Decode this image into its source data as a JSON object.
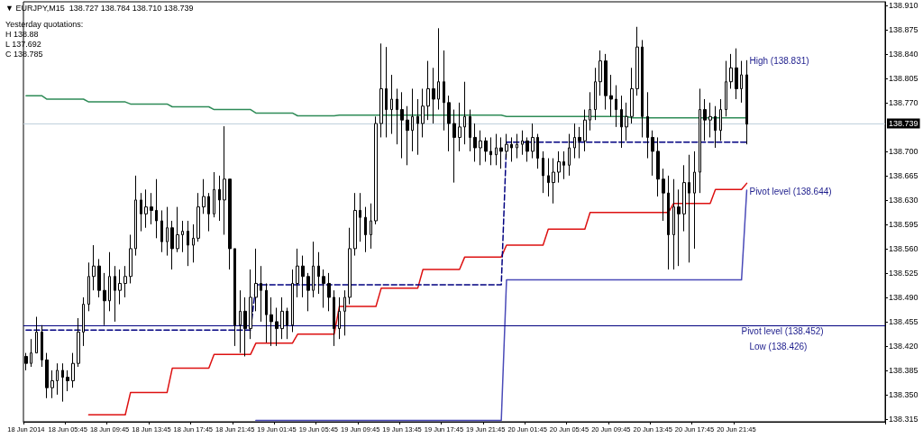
{
  "chart_data": {
    "type": "candlestick",
    "title": "▼ EURJPY,M15  138.727 138.784 138.710 138.739",
    "color": "#000000",
    "marker": "none",
    "annotations": [
      "Yesterday quotations:",
      "H 138.88",
      "L 137.692",
      "C 138.785",
      {
        "text": "Pivot level (138.452)",
        "y": 138.452
      },
      "High (138.831)",
      "Pivot level (138.644)",
      "Low (138.426)"
    ],
    "ylim": [
      138.311,
      138.915
    ],
    "yticks": [
      {
        "value": 138.315,
        "label": "138.315"
      },
      {
        "value": 138.35,
        "label": "138.350"
      },
      {
        "value": 138.385,
        "label": "138.385"
      },
      {
        "value": 138.42,
        "label": "138.420"
      },
      {
        "value": 138.455,
        "label": "138.455"
      },
      {
        "value": 138.49,
        "label": "138.490"
      },
      {
        "value": 138.525,
        "label": "138.525"
      },
      {
        "value": 138.56,
        "label": "138.560"
      },
      {
        "value": 138.595,
        "label": "138.595"
      },
      {
        "value": 138.63,
        "label": "138.630"
      },
      {
        "value": 138.665,
        "label": "138.665"
      },
      {
        "value": 138.7,
        "label": "138.700"
      },
      {
        "value": 138.77,
        "label": "138.770"
      },
      {
        "value": 138.805,
        "label": "138.805"
      },
      {
        "value": 138.84,
        "label": "138.840"
      },
      {
        "value": 138.875,
        "label": "138.875"
      },
      {
        "value": 138.91,
        "label": "138.910"
      }
    ],
    "ref_lines": [
      {
        "axis": "y",
        "value": 138.739,
        "label": "138.739",
        "color": "#c0d0dc"
      },
      {
        "axis": "y",
        "value": 138.452,
        "color": "#000080"
      }
    ],
    "categories": [
      "18 Jun 2014",
      null,
      null,
      null,
      null,
      null,
      null,
      null,
      "18 Jun 05:45",
      null,
      null,
      null,
      null,
      null,
      null,
      null,
      "18 Jun 09:45",
      null,
      null,
      null,
      null,
      null,
      null,
      null,
      "18 Jun 13:45",
      null,
      null,
      null,
      null,
      null,
      null,
      null,
      "18 Jun 17:45",
      null,
      null,
      null,
      null,
      null,
      null,
      null,
      "18 Jun 21:45",
      null,
      null,
      null,
      null,
      null,
      null,
      null,
      "19 Jun 01:45",
      null,
      null,
      null,
      null,
      null,
      null,
      null,
      "19 Jun 05:45",
      null,
      null,
      null,
      null,
      null,
      null,
      null,
      "19 Jun 09:45",
      null,
      null,
      null,
      null,
      null,
      null,
      null,
      "19 Jun 13:45",
      null,
      null,
      null,
      null,
      null,
      null,
      null,
      "19 Jun 17:45",
      null,
      null,
      null,
      null,
      null,
      null,
      null,
      "19 Jun 21:45",
      null,
      null,
      null,
      null,
      null,
      null,
      null,
      "20 Jun 01:45",
      null,
      null,
      null,
      null,
      null,
      null,
      null,
      "20 Jun 05:45",
      null,
      null,
      null,
      null,
      null,
      null,
      null,
      "20 Jun 09:45",
      null,
      null,
      null,
      null,
      null,
      null,
      null,
      "20 Jun 13:45",
      null,
      null,
      null,
      null,
      null,
      null,
      null,
      "20 Jun 17:45",
      null,
      null,
      null,
      null,
      null,
      null,
      null,
      "20 Jun 21:45",
      null,
      null,
      null,
      null,
      null,
      null,
      null,
      null,
      null,
      null,
      null,
      null,
      null,
      null,
      null,
      null,
      null,
      null,
      null,
      null,
      null,
      null,
      null,
      null,
      null,
      null,
      null,
      null
    ],
    "ohlc": [
      [
        138.405,
        138.41,
        138.385,
        138.395
      ],
      [
        138.395,
        138.43,
        138.39,
        138.41
      ],
      [
        138.41,
        138.462,
        138.41,
        138.44
      ],
      [
        138.44,
        138.45,
        138.39,
        138.4
      ],
      [
        138.4,
        138.41,
        138.345,
        138.36
      ],
      [
        138.36,
        138.385,
        138.345,
        138.37
      ],
      [
        138.37,
        138.395,
        138.35,
        138.385
      ],
      [
        138.385,
        138.395,
        138.34,
        138.375
      ],
      [
        138.375,
        138.385,
        138.355,
        138.37
      ],
      [
        138.37,
        138.41,
        138.36,
        138.395
      ],
      [
        138.395,
        138.46,
        138.39,
        138.44
      ],
      [
        138.44,
        138.49,
        138.42,
        138.48
      ],
      [
        138.48,
        138.54,
        138.47,
        138.52
      ],
      [
        138.52,
        138.565,
        138.5,
        138.535
      ],
      [
        138.535,
        138.545,
        138.49,
        138.5
      ],
      [
        138.5,
        138.525,
        138.45,
        138.485
      ],
      [
        138.485,
        138.555,
        138.47,
        138.52
      ],
      [
        138.52,
        138.535,
        138.455,
        138.5
      ],
      [
        138.5,
        138.53,
        138.48,
        138.51
      ],
      [
        138.51,
        138.535,
        138.49,
        138.52
      ],
      [
        138.52,
        138.58,
        138.51,
        138.56
      ],
      [
        138.56,
        138.665,
        138.55,
        138.63
      ],
      [
        138.63,
        138.64,
        138.585,
        138.61
      ],
      [
        138.61,
        138.645,
        138.59,
        138.62
      ],
      [
        138.62,
        138.64,
        138.595,
        138.615
      ],
      [
        138.615,
        138.66,
        138.575,
        138.6
      ],
      [
        138.6,
        138.615,
        138.555,
        138.57
      ],
      [
        138.57,
        138.62,
        138.55,
        138.59
      ],
      [
        138.59,
        138.6,
        138.53,
        138.56
      ],
      [
        138.56,
        138.62,
        138.555,
        138.58
      ],
      [
        138.58,
        138.6,
        138.555,
        138.585
      ],
      [
        138.585,
        138.6,
        138.535,
        138.565
      ],
      [
        138.565,
        138.595,
        138.54,
        138.575
      ],
      [
        138.575,
        138.64,
        138.57,
        138.62
      ],
      [
        138.62,
        138.66,
        138.61,
        138.635
      ],
      [
        138.635,
        138.64,
        138.585,
        138.61
      ],
      [
        138.61,
        138.67,
        138.605,
        138.645
      ],
      [
        138.645,
        138.665,
        138.6,
        138.63
      ],
      [
        138.63,
        138.736,
        138.58,
        138.66
      ],
      [
        138.66,
        138.66,
        138.53,
        138.56
      ],
      [
        138.56,
        138.56,
        138.42,
        138.45
      ],
      [
        138.45,
        138.5,
        138.41,
        138.47
      ],
      [
        138.47,
        138.49,
        138.405,
        138.445
      ],
      [
        138.445,
        138.53,
        138.43,
        138.49
      ],
      [
        138.49,
        138.56,
        138.47,
        138.51
      ],
      [
        138.51,
        138.535,
        138.455,
        138.5
      ],
      [
        138.5,
        138.51,
        138.425,
        138.465
      ],
      [
        138.465,
        138.49,
        138.42,
        138.455
      ],
      [
        138.455,
        138.475,
        138.42,
        138.445
      ],
      [
        138.445,
        138.49,
        138.43,
        138.47
      ],
      [
        138.47,
        138.475,
        138.43,
        138.45
      ],
      [
        138.45,
        138.53,
        138.44,
        138.51
      ],
      [
        138.51,
        138.56,
        138.49,
        138.535
      ],
      [
        138.535,
        138.55,
        138.49,
        138.52
      ],
      [
        138.52,
        138.525,
        138.47,
        138.5
      ],
      [
        138.5,
        138.57,
        138.49,
        138.535
      ],
      [
        138.535,
        138.555,
        138.495,
        138.52
      ],
      [
        138.52,
        138.53,
        138.475,
        138.51
      ],
      [
        138.51,
        138.525,
        138.47,
        138.49
      ],
      [
        138.49,
        138.5,
        138.42,
        138.445
      ],
      [
        138.445,
        138.49,
        138.43,
        138.47
      ],
      [
        138.47,
        138.5,
        138.435,
        138.49
      ],
      [
        138.49,
        138.59,
        138.48,
        138.56
      ],
      [
        138.56,
        138.64,
        138.55,
        138.615
      ],
      [
        138.615,
        138.64,
        138.57,
        138.605
      ],
      [
        138.605,
        138.62,
        138.555,
        138.58
      ],
      [
        138.58,
        138.625,
        138.56,
        138.6
      ],
      [
        138.6,
        138.75,
        138.595,
        138.74
      ],
      [
        138.74,
        138.855,
        138.72,
        138.79
      ],
      [
        138.79,
        138.85,
        138.72,
        138.76
      ],
      [
        138.76,
        138.81,
        138.725,
        138.775
      ],
      [
        138.775,
        138.79,
        138.71,
        138.76
      ],
      [
        138.76,
        138.785,
        138.69,
        138.745
      ],
      [
        138.745,
        138.765,
        138.68,
        138.73
      ],
      [
        138.73,
        138.79,
        138.7,
        138.75
      ],
      [
        138.75,
        138.775,
        138.695,
        138.74
      ],
      [
        138.74,
        138.79,
        138.72,
        138.765
      ],
      [
        138.765,
        138.83,
        138.745,
        138.79
      ],
      [
        138.79,
        138.82,
        138.74,
        138.775
      ],
      [
        138.775,
        138.877,
        138.76,
        138.8
      ],
      [
        138.8,
        138.845,
        138.73,
        138.77
      ],
      [
        138.77,
        138.78,
        138.7,
        138.74
      ],
      [
        138.74,
        138.76,
        138.655,
        138.72
      ],
      [
        138.72,
        138.77,
        138.7,
        138.735
      ],
      [
        138.735,
        138.8,
        138.71,
        138.75
      ],
      [
        138.75,
        138.76,
        138.7,
        138.72
      ],
      [
        138.72,
        138.74,
        138.685,
        138.705
      ],
      [
        138.705,
        138.73,
        138.68,
        138.715
      ],
      [
        138.715,
        138.72,
        138.685,
        138.7
      ],
      [
        138.7,
        138.72,
        138.68,
        138.695
      ],
      [
        138.695,
        138.725,
        138.68,
        138.705
      ],
      [
        138.705,
        138.72,
        138.675,
        138.7
      ],
      [
        138.7,
        138.725,
        138.69,
        138.71
      ],
      [
        138.71,
        138.72,
        138.685,
        138.705
      ],
      [
        138.705,
        138.725,
        138.69,
        138.71
      ],
      [
        138.71,
        138.73,
        138.695,
        138.715
      ],
      [
        138.715,
        138.72,
        138.685,
        138.7
      ],
      [
        138.7,
        138.74,
        138.69,
        138.72
      ],
      [
        138.72,
        138.725,
        138.675,
        138.69
      ],
      [
        138.69,
        138.7,
        138.64,
        138.665
      ],
      [
        138.665,
        138.69,
        138.635,
        138.655
      ],
      [
        138.655,
        138.69,
        138.625,
        138.67
      ],
      [
        138.67,
        138.7,
        138.655,
        138.685
      ],
      [
        138.685,
        138.7,
        138.66,
        138.68
      ],
      [
        138.68,
        138.725,
        138.665,
        138.705
      ],
      [
        138.705,
        138.74,
        138.69,
        138.72
      ],
      [
        138.72,
        138.735,
        138.69,
        138.715
      ],
      [
        138.715,
        138.76,
        138.7,
        138.745
      ],
      [
        138.745,
        138.785,
        138.73,
        138.76
      ],
      [
        138.76,
        138.82,
        138.745,
        138.8
      ],
      [
        138.8,
        138.845,
        138.78,
        138.83
      ],
      [
        138.83,
        138.84,
        138.76,
        138.78
      ],
      [
        138.78,
        138.81,
        138.75,
        138.775
      ],
      [
        138.775,
        138.795,
        138.735,
        138.76
      ],
      [
        138.76,
        138.78,
        138.705,
        138.735
      ],
      [
        138.735,
        138.77,
        138.715,
        138.75
      ],
      [
        138.75,
        138.82,
        138.74,
        138.79
      ],
      [
        138.79,
        138.879,
        138.78,
        138.85
      ],
      [
        138.85,
        138.86,
        138.72,
        138.75
      ],
      [
        138.75,
        138.785,
        138.69,
        138.72
      ],
      [
        138.72,
        138.73,
        138.665,
        138.7
      ],
      [
        138.7,
        138.72,
        138.635,
        138.66
      ],
      [
        138.66,
        138.675,
        138.6,
        138.64
      ],
      [
        138.64,
        138.665,
        138.53,
        138.58
      ],
      [
        138.58,
        138.66,
        138.53,
        138.62
      ],
      [
        138.62,
        138.645,
        138.535,
        138.61
      ],
      [
        138.61,
        138.68,
        138.585,
        138.655
      ],
      [
        138.655,
        138.695,
        138.54,
        138.64
      ],
      [
        138.64,
        138.7,
        138.56,
        138.67
      ],
      [
        138.67,
        138.79,
        138.64,
        138.76
      ],
      [
        138.76,
        138.775,
        138.715,
        138.745
      ],
      [
        138.745,
        138.77,
        138.72,
        138.75
      ],
      [
        138.75,
        138.765,
        138.705,
        138.73
      ],
      [
        138.73,
        138.775,
        138.715,
        138.76
      ],
      [
        138.76,
        138.83,
        138.75,
        138.8
      ],
      [
        138.8,
        138.84,
        138.79,
        138.82
      ],
      [
        138.82,
        138.848,
        138.775,
        138.79
      ],
      [
        138.79,
        138.83,
        138.77,
        138.81
      ],
      [
        138.81,
        138.831,
        138.71,
        138.739
      ],
      null,
      null,
      null,
      null,
      null,
      null,
      null,
      null,
      null,
      null,
      null,
      null,
      null,
      null,
      null,
      null,
      null,
      null,
      null,
      null,
      null,
      null,
      null,
      null,
      null,
      null
    ],
    "series": [
      {
        "type": "line",
        "color": "#2e8b57",
        "line_style": "solid",
        "values": [
          138.78,
          138.78,
          138.78,
          138.78,
          138.775,
          138.775,
          138.775,
          138.775,
          138.775,
          138.775,
          138.775,
          138.775,
          138.771,
          138.771,
          138.771,
          138.771,
          138.771,
          138.771,
          138.771,
          138.771,
          138.768,
          138.768,
          138.768,
          138.768,
          138.768,
          138.768,
          138.768,
          138.768,
          138.764,
          138.764,
          138.764,
          138.764,
          138.764,
          138.764,
          138.764,
          138.764,
          138.76,
          138.76,
          138.76,
          138.76,
          138.76,
          138.76,
          138.76,
          138.76,
          138.755,
          138.755,
          138.755,
          138.755,
          138.755,
          138.755,
          138.755,
          138.755,
          138.751,
          138.751,
          138.751,
          138.751,
          138.751,
          138.751,
          138.751,
          138.751,
          138.752,
          138.752,
          138.752,
          138.752,
          138.752,
          138.752,
          138.752,
          138.752,
          138.752,
          138.752,
          138.752,
          138.752,
          138.752,
          138.752,
          138.752,
          138.752,
          138.752,
          138.752,
          138.752,
          138.752,
          138.752,
          138.752,
          138.752,
          138.752,
          138.752,
          138.752,
          138.752,
          138.752,
          138.752,
          138.752,
          138.752,
          138.752,
          138.75,
          138.75,
          138.75,
          138.75,
          138.75,
          138.75,
          138.75,
          138.75,
          138.75,
          138.75,
          138.75,
          138.75,
          138.75,
          138.75,
          138.75,
          138.75,
          138.75,
          138.75,
          138.75,
          138.75,
          138.75,
          138.75,
          138.75,
          138.75,
          138.748,
          138.748,
          138.748,
          138.748,
          138.748,
          138.748,
          138.748,
          138.748,
          138.748,
          138.748,
          138.748,
          138.748,
          138.748,
          138.748,
          138.748,
          138.748,
          138.748,
          138.748,
          138.748,
          138.748,
          138.748,
          138.748,
          138.748,
          null,
          null,
          null,
          null,
          null,
          null,
          null,
          null,
          null,
          null,
          null,
          null,
          null,
          null,
          null,
          null,
          null,
          null,
          null,
          null,
          null,
          null,
          null,
          null,
          null,
          null
        ]
      },
      {
        "type": "line",
        "color": "#dd1111",
        "line_style": "solid",
        "values": [
          null,
          null,
          null,
          null,
          null,
          null,
          null,
          null,
          null,
          null,
          null,
          null,
          138.321,
          138.321,
          138.321,
          138.321,
          138.321,
          138.321,
          138.321,
          138.321,
          138.353,
          138.353,
          138.353,
          138.353,
          138.353,
          138.353,
          138.353,
          138.353,
          138.388,
          138.388,
          138.388,
          138.388,
          138.388,
          138.388,
          138.388,
          138.388,
          138.408,
          138.408,
          138.408,
          138.408,
          138.408,
          138.408,
          138.408,
          138.408,
          138.424,
          138.424,
          138.424,
          138.424,
          138.424,
          138.424,
          138.424,
          138.424,
          138.437,
          138.437,
          138.437,
          138.437,
          138.437,
          138.437,
          138.437,
          138.437,
          138.477,
          138.477,
          138.477,
          138.477,
          138.477,
          138.477,
          138.477,
          138.477,
          138.503,
          138.503,
          138.503,
          138.503,
          138.503,
          138.503,
          138.503,
          138.503,
          138.53,
          138.53,
          138.53,
          138.53,
          138.53,
          138.53,
          138.53,
          138.53,
          138.548,
          138.548,
          138.548,
          138.548,
          138.548,
          138.548,
          138.548,
          138.548,
          138.565,
          138.565,
          138.565,
          138.565,
          138.565,
          138.565,
          138.565,
          138.565,
          138.588,
          138.588,
          138.588,
          138.588,
          138.588,
          138.588,
          138.588,
          138.588,
          138.612,
          138.612,
          138.612,
          138.612,
          138.612,
          138.612,
          138.612,
          138.612,
          138.612,
          138.612,
          138.612,
          138.612,
          138.612,
          138.612,
          138.612,
          138.612,
          138.625,
          138.625,
          138.625,
          138.625,
          138.625,
          138.625,
          138.625,
          138.625,
          138.645,
          138.645,
          138.645,
          138.645,
          138.645,
          138.645,
          138.654,
          null,
          null,
          null,
          null,
          null,
          null,
          null,
          null,
          null,
          null,
          null,
          null,
          null,
          null,
          null,
          null,
          null,
          null,
          null,
          null,
          null,
          null,
          null,
          null,
          null,
          null
        ]
      },
      {
        "type": "line",
        "color": "#4a4ab8",
        "line_style": "solid",
        "values": [
          null,
          null,
          null,
          null,
          null,
          null,
          null,
          null,
          null,
          null,
          null,
          null,
          null,
          null,
          null,
          null,
          null,
          null,
          null,
          null,
          null,
          null,
          null,
          null,
          null,
          null,
          null,
          null,
          null,
          null,
          null,
          null,
          null,
          null,
          null,
          null,
          null,
          null,
          null,
          null,
          null,
          null,
          null,
          null,
          138.313,
          138.313,
          138.313,
          138.313,
          138.313,
          138.313,
          138.313,
          138.313,
          138.313,
          138.313,
          138.313,
          138.313,
          138.313,
          138.313,
          138.313,
          138.313,
          138.313,
          138.313,
          138.313,
          138.313,
          138.313,
          138.313,
          138.313,
          138.313,
          138.313,
          138.313,
          138.313,
          138.313,
          138.313,
          138.313,
          138.313,
          138.313,
          138.313,
          138.313,
          138.313,
          138.313,
          138.313,
          138.313,
          138.313,
          138.313,
          138.313,
          138.313,
          138.313,
          138.313,
          138.313,
          138.313,
          138.313,
          138.313,
          138.515,
          138.515,
          138.515,
          138.515,
          138.515,
          138.515,
          138.515,
          138.515,
          138.515,
          138.515,
          138.515,
          138.515,
          138.515,
          138.515,
          138.515,
          138.515,
          138.515,
          138.515,
          138.515,
          138.515,
          138.515,
          138.515,
          138.515,
          138.515,
          138.515,
          138.515,
          138.515,
          138.515,
          138.515,
          138.515,
          138.515,
          138.515,
          138.515,
          138.515,
          138.515,
          138.515,
          138.515,
          138.515,
          138.515,
          138.515,
          138.515,
          138.515,
          138.515,
          138.515,
          138.515,
          138.515,
          138.644,
          null,
          null,
          null,
          null,
          null,
          null,
          null,
          null,
          null,
          null,
          null,
          null,
          null,
          null,
          null,
          null,
          null,
          null,
          null,
          null,
          null,
          null,
          null,
          null,
          null,
          null
        ]
      },
      {
        "type": "line",
        "color": "#000080",
        "line_style": "dashed",
        "values": [
          138.443,
          138.443,
          138.443,
          138.443,
          138.443,
          138.443,
          138.443,
          138.443,
          138.443,
          138.443,
          138.443,
          138.443,
          138.443,
          138.443,
          138.443,
          138.443,
          138.443,
          138.443,
          138.443,
          138.443,
          138.443,
          138.443,
          138.443,
          138.443,
          138.443,
          138.443,
          138.443,
          138.443,
          138.443,
          138.443,
          138.443,
          138.443,
          138.443,
          138.443,
          138.443,
          138.443,
          138.443,
          138.443,
          138.443,
          138.443,
          138.443,
          138.443,
          138.443,
          138.443,
          138.508,
          138.508,
          138.508,
          138.508,
          138.508,
          138.508,
          138.508,
          138.508,
          138.508,
          138.508,
          138.508,
          138.508,
          138.508,
          138.508,
          138.508,
          138.508,
          138.508,
          138.508,
          138.508,
          138.508,
          138.508,
          138.508,
          138.508,
          138.508,
          138.508,
          138.508,
          138.508,
          138.508,
          138.508,
          138.508,
          138.508,
          138.508,
          138.508,
          138.508,
          138.508,
          138.508,
          138.508,
          138.508,
          138.508,
          138.508,
          138.508,
          138.508,
          138.508,
          138.508,
          138.508,
          138.508,
          138.508,
          138.508,
          138.713,
          138.713,
          138.713,
          138.713,
          138.713,
          138.713,
          138.713,
          138.713,
          138.713,
          138.713,
          138.713,
          138.713,
          138.713,
          138.713,
          138.713,
          138.713,
          138.713,
          138.713,
          138.713,
          138.713,
          138.713,
          138.713,
          138.713,
          138.713,
          138.713,
          138.713,
          138.713,
          138.713,
          138.713,
          138.713,
          138.713,
          138.713,
          138.713,
          138.713,
          138.713,
          138.713,
          138.713,
          138.713,
          138.713,
          138.713,
          138.713,
          138.713,
          138.713,
          138.713,
          138.713,
          138.713,
          138.713,
          null,
          null,
          null,
          null,
          null,
          null,
          null,
          null,
          null,
          null,
          null,
          null,
          null,
          null,
          null,
          null,
          null,
          null,
          null,
          null,
          null,
          null,
          null,
          null,
          null,
          null
        ]
      }
    ]
  }
}
